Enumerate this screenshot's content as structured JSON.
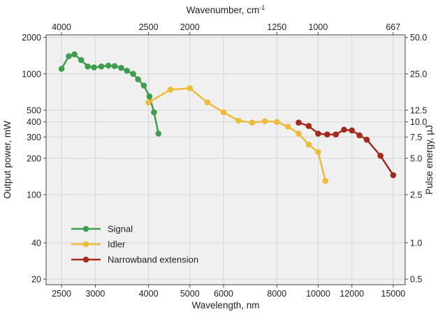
{
  "chart_data": {
    "type": "line",
    "title": "",
    "xlabel": "Wavelength, nm",
    "x2label": "Wavenumber, cm",
    "x2label_sup": "-1",
    "ylabel": "Output power, mW",
    "y2label": "Pulse energy, µJ",
    "x_scale": "log",
    "y_scale": "log",
    "xlim": [
      2300,
      16000
    ],
    "ylim": [
      18,
      2100
    ],
    "grid": true,
    "legend_position": "lower-left",
    "x_ticks": [
      2500,
      3000,
      4000,
      5000,
      6000,
      8000,
      10000,
      12000,
      15000
    ],
    "x_tick_labels": [
      "2500",
      "3000",
      "4000",
      "5000",
      "6000",
      "8000",
      "10000",
      "12000",
      "15000"
    ],
    "y_ticks": [
      20,
      40,
      100,
      200,
      300,
      400,
      500,
      1000,
      2000
    ],
    "y_tick_labels": [
      "20",
      "40",
      "100",
      "200",
      "300",
      "400",
      "500",
      "1000",
      "2000"
    ],
    "x2_ticks": [
      4000,
      2500,
      2000,
      1250,
      1000,
      667
    ],
    "x2_tick_labels": [
      "4000",
      "2500",
      "2000",
      "1250",
      "1000",
      "667"
    ],
    "y2_ticks": [
      0.5,
      1.0,
      2.5,
      5.0,
      7.5,
      10.0,
      12.5,
      25.0,
      50.0
    ],
    "y2_tick_labels": [
      "0.5",
      "1.0",
      "2.5",
      "5.0",
      "7.5",
      "10.0",
      "12.5",
      "25.0",
      "50.0"
    ],
    "y2_per_y": 0.025,
    "series": [
      {
        "name": "Signal",
        "color": "#3f9e4d",
        "x": [
          2500,
          2600,
          2680,
          2780,
          2880,
          2980,
          3100,
          3220,
          3330,
          3450,
          3560,
          3680,
          3780,
          3900,
          4020,
          4120,
          4220
        ],
        "y": [
          1100,
          1400,
          1450,
          1300,
          1150,
          1130,
          1150,
          1170,
          1160,
          1120,
          1060,
          1000,
          900,
          800,
          650,
          480,
          320
        ]
      },
      {
        "name": "Idler",
        "color": "#ecbc3a",
        "x": [
          4000,
          4500,
          5000,
          5500,
          6000,
          6500,
          7000,
          7500,
          8000,
          8500,
          9000,
          9500,
          10000,
          10400
        ],
        "y": [
          580,
          740,
          760,
          580,
          480,
          410,
          395,
          405,
          400,
          365,
          320,
          260,
          225,
          130
        ]
      },
      {
        "name": "Narrowband extension",
        "color": "#a32a1c",
        "x": [
          9000,
          9500,
          10000,
          10500,
          11000,
          11500,
          12000,
          12500,
          13000,
          14000,
          15000
        ],
        "y": [
          395,
          370,
          320,
          315,
          315,
          345,
          340,
          310,
          285,
          210,
          145
        ]
      }
    ]
  }
}
